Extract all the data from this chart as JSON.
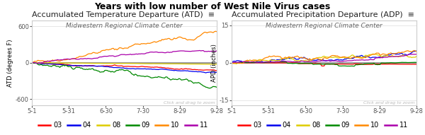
{
  "title": "Years with low number of West Nile Virus cases",
  "left_title": "Accumulated Temperature Departure (ATD)",
  "right_title": "Accumulated Precipitation Departure (ADP)",
  "subtitle": "Midwestern Regional Climate Center",
  "left_ylabel": "ATD (degrees F)",
  "right_ylabel": "APD (inches)",
  "left_ylim": [
    -700,
    700
  ],
  "right_ylim": [
    -17,
    17
  ],
  "left_yticks": [
    -600,
    0,
    600
  ],
  "right_yticks": [
    -15,
    0,
    15
  ],
  "xtick_labels": [
    "5-1",
    "5-31",
    "6-30",
    "7-30",
    "8-29",
    "9-28"
  ],
  "watermark": "Click and drag to zoom",
  "legend_years": [
    "03",
    "04",
    "08",
    "09",
    "10",
    "11"
  ],
  "legend_colors": [
    "#ff0000",
    "#0000ee",
    "#ddcc00",
    "#008800",
    "#ff8800",
    "#aa00aa"
  ],
  "background_color": "#ffffff",
  "plot_bg_color": "#ffffff",
  "border_color": "#cccccc",
  "series_colors": {
    "03": "#ff0000",
    "04": "#0000ee",
    "08": "#ddcc00",
    "09": "#008800",
    "10": "#ff8800",
    "11": "#aa00aa"
  },
  "n_points": 153,
  "title_fontsize": 9,
  "subplot_title_fontsize": 8,
  "subtitle_fontsize": 6.5,
  "tick_fontsize": 6,
  "ylabel_fontsize": 6,
  "legend_fontsize": 7
}
